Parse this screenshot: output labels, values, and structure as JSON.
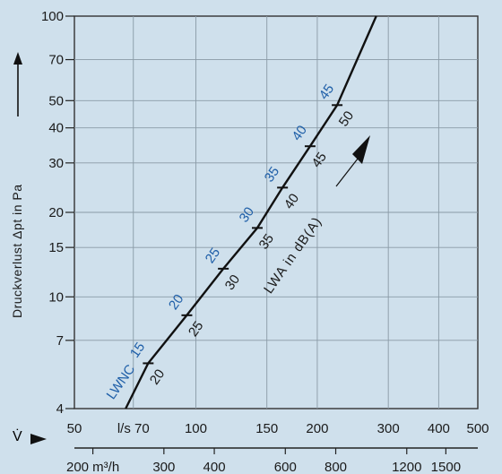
{
  "chart_data": {
    "type": "line",
    "x_scale": "log",
    "y_scale": "log",
    "grid": true,
    "x_unit": "l/s",
    "x_unit_alt": "m³/h",
    "xlim": [
      50,
      500
    ],
    "ylim": [
      4,
      100
    ],
    "x_ticks": [
      50,
      70,
      100,
      150,
      200,
      300,
      400,
      500
    ],
    "x_tick_labels": [
      "50",
      "l/s 70",
      "100",
      "150",
      "200",
      "300",
      "400",
      "500"
    ],
    "x2_ticks": [
      200,
      300,
      400,
      600,
      800,
      1200,
      1500
    ],
    "x2_tick_labels": [
      "200 m³/h",
      "300",
      "400",
      "600",
      "800",
      "1200",
      "1500"
    ],
    "y_ticks": [
      4,
      7,
      10,
      15,
      20,
      30,
      40,
      50,
      70,
      100
    ],
    "y_tick_labels": [
      "4",
      "7",
      "10",
      "15",
      "20",
      "30",
      "40",
      "50",
      "70",
      "100"
    ],
    "ylabel": "Druckverlust  Δpt in Pa",
    "xlabel_symbol": "V̇",
    "series": [
      {
        "name": "LWA in dB(A)",
        "points": [
          [
            67,
            4
          ],
          [
            76.2,
            5.8
          ],
          [
            95,
            8.6
          ],
          [
            117,
            12.6
          ],
          [
            142,
            17.6
          ],
          [
            164,
            24.5
          ],
          [
            192,
            34.4
          ],
          [
            224,
            48.2
          ],
          [
            280,
            100
          ]
        ]
      }
    ],
    "markers_lwa": [
      {
        "label": "20",
        "x": 76.2,
        "y": 5.8
      },
      {
        "label": "25",
        "x": 95,
        "y": 8.6
      },
      {
        "label": "30",
        "x": 117,
        "y": 12.6
      },
      {
        "label": "35",
        "x": 142,
        "y": 17.6
      },
      {
        "label": "40",
        "x": 164,
        "y": 24.5
      },
      {
        "label": "45",
        "x": 192,
        "y": 34.4
      },
      {
        "label": "50",
        "x": 224,
        "y": 48.2
      }
    ],
    "markers_lwnc": [
      {
        "label": "15",
        "x": 76.2,
        "y": 5.8
      },
      {
        "label": "20",
        "x": 95,
        "y": 8.6
      },
      {
        "label": "25",
        "x": 117,
        "y": 12.6
      },
      {
        "label": "30",
        "x": 142,
        "y": 17.6
      },
      {
        "label": "35",
        "x": 164,
        "y": 24.5
      },
      {
        "label": "40",
        "x": 192,
        "y": 34.4
      },
      {
        "label": "45",
        "x": 224,
        "y": 48.2
      }
    ],
    "curve_label": "LWA in dB(A)",
    "lwnc_label": "LWNC",
    "colors": {
      "background": "#cfe0ec",
      "line": "#111111",
      "accent": "#1f5fa8",
      "grid": "#8a9aa6"
    }
  }
}
